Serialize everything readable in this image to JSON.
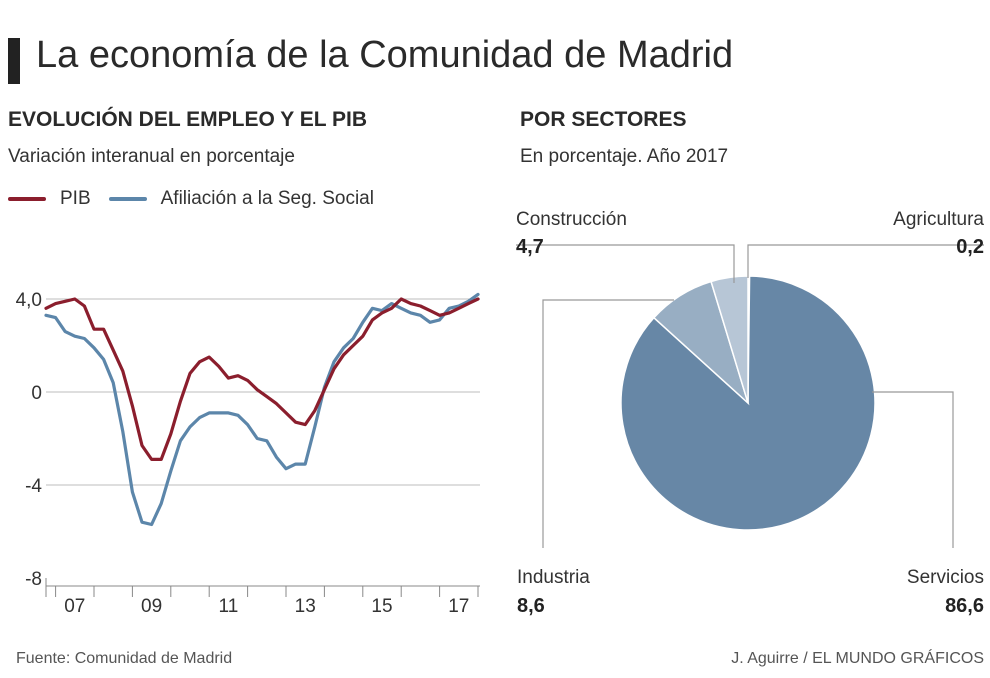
{
  "title": "La economía de la Comunidad de Madrid",
  "left": {
    "heading": "EVOLUCIÓN DEL EMPLEO Y EL PIB",
    "subtitle": "Variación interanual en porcentaje"
  },
  "right": {
    "heading": "POR SECTORES",
    "subtitle": "En porcentaje. Año 2017"
  },
  "footer": {
    "source": "Fuente: Comunidad de Madrid",
    "credit": "J. Aguirre / EL MUNDO GRÁFICOS"
  },
  "chart_data": [
    {
      "type": "line",
      "x_ticks": [
        "07",
        "09",
        "11",
        "13",
        "15",
        "17"
      ],
      "y_ticks": [
        "4,0",
        "0",
        "-4",
        "-8"
      ],
      "ylim": [
        -8,
        4
      ],
      "grid": true,
      "legend": "top-left",
      "x_unit": "quarter (2006 Q4 – 2017 Q4)",
      "series": [
        {
          "name": "PIB",
          "color": "#8b1e2d",
          "values": [
            3.6,
            3.8,
            3.9,
            4.0,
            3.7,
            2.7,
            2.7,
            1.8,
            0.9,
            -0.6,
            -2.3,
            -2.9,
            -2.9,
            -1.8,
            -0.4,
            0.8,
            1.3,
            1.5,
            1.1,
            0.6,
            0.7,
            0.5,
            0.1,
            -0.2,
            -0.5,
            -0.9,
            -1.3,
            -1.4,
            -0.8,
            0.1,
            1.0,
            1.6,
            2.0,
            2.4,
            3.1,
            3.4,
            3.6,
            4.0,
            3.8,
            3.7,
            3.5,
            3.3,
            3.4,
            3.6,
            3.8,
            4.0
          ]
        },
        {
          "name": "Afiliación a la Seg. Social",
          "color": "#5c86aa",
          "values": [
            3.3,
            3.2,
            2.6,
            2.4,
            2.3,
            1.9,
            1.4,
            0.4,
            -1.7,
            -4.3,
            -5.6,
            -5.7,
            -4.8,
            -3.4,
            -2.1,
            -1.5,
            -1.1,
            -0.9,
            -0.9,
            -0.9,
            -1.0,
            -1.4,
            -2.0,
            -2.1,
            -2.8,
            -3.3,
            -3.1,
            -3.1,
            -1.5,
            0.2,
            1.3,
            1.9,
            2.3,
            3.0,
            3.6,
            3.5,
            3.8,
            3.6,
            3.4,
            3.3,
            3.0,
            3.1,
            3.6,
            3.7,
            3.9,
            4.2
          ]
        }
      ]
    },
    {
      "type": "pie",
      "categories": [
        "Agricultura",
        "Servicios",
        "Industria",
        "Construcción"
      ],
      "values": [
        0.2,
        86.6,
        8.6,
        4.7
      ],
      "value_labels": [
        "0,2",
        "86,6",
        "8,6",
        "4,7"
      ],
      "colors": [
        "#c3cfdd",
        "#6787a6",
        "#98aec3",
        "#b7c6d6"
      ]
    }
  ]
}
